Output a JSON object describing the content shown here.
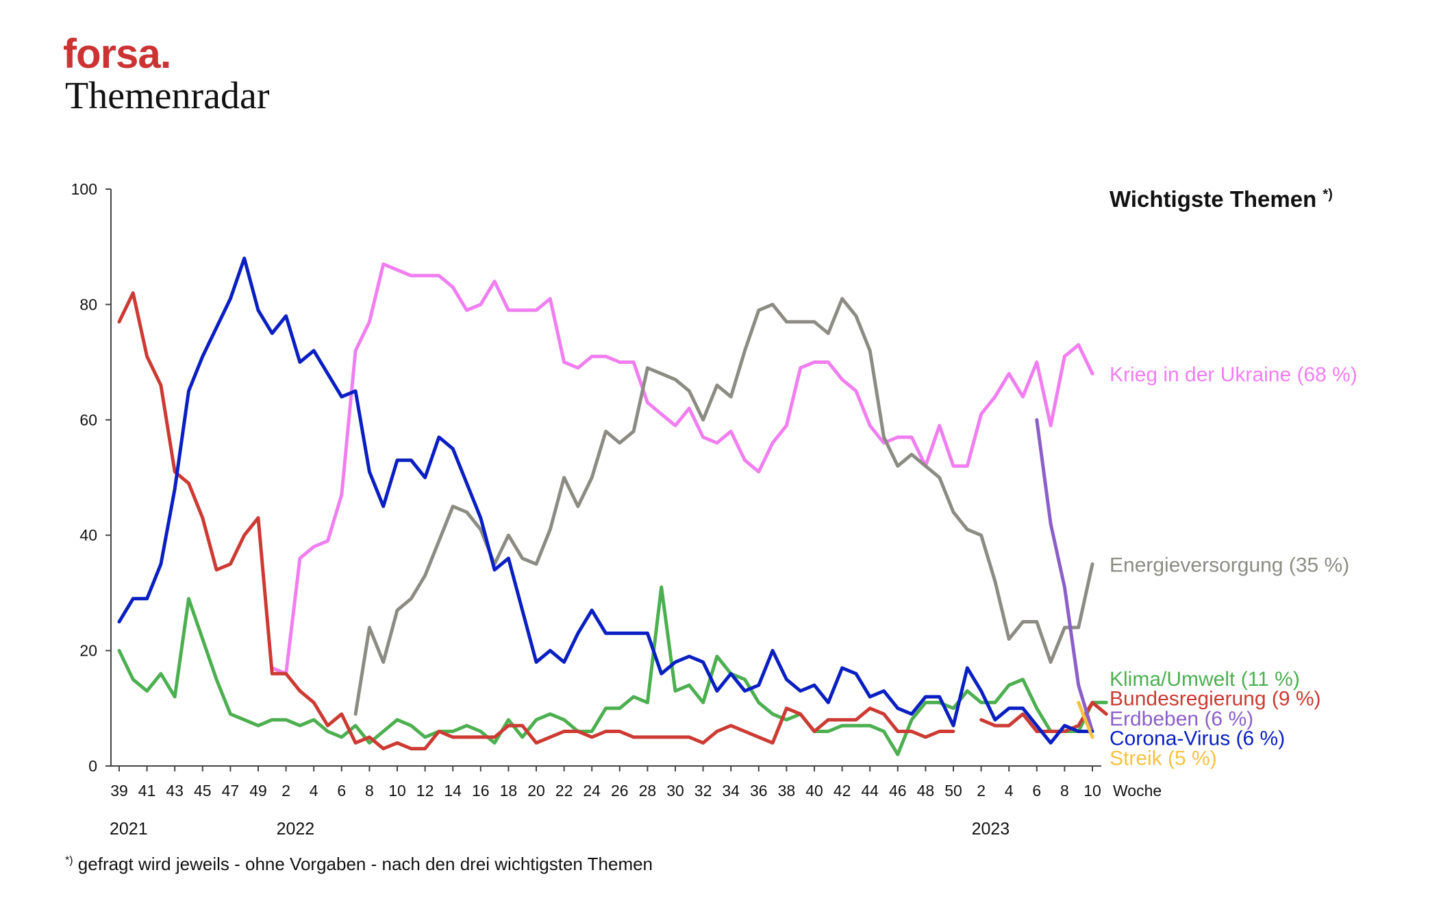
{
  "header": {
    "brand": "forsa.",
    "title": "Themenradar"
  },
  "footnote": {
    "mark": "*)",
    "text": "gefragt wird jeweils - ohne Vorgaben - nach den drei wichtigsten Themen"
  },
  "chart_data": {
    "type": "line",
    "title": "Wichtigste Themen",
    "title_mark": "*)",
    "xlabel": "Woche",
    "ylabel": "",
    "ylim": [
      0,
      100
    ],
    "yticks": [
      0,
      20,
      40,
      60,
      80,
      100
    ],
    "grid": false,
    "legend": "right (labels at line ends)",
    "week_ticks": [
      "39",
      "41",
      "43",
      "45",
      "47",
      "49",
      "2",
      "4",
      "6",
      "8",
      "10",
      "12",
      "14",
      "16",
      "18",
      "20",
      "22",
      "24",
      "26",
      "28",
      "30",
      "32",
      "34",
      "36",
      "38",
      "40",
      "42",
      "44",
      "46",
      "48",
      "50",
      "2",
      "4",
      "6",
      "8",
      "10"
    ],
    "years": [
      {
        "label": "2021",
        "x": 0
      },
      {
        "label": "2022",
        "x": 12
      },
      {
        "label": "2023",
        "x": 62
      }
    ],
    "x_note": "x = week index; 0 = Woche 39/2021, 12 = Woche 2/2022, 62 = Woche 2/2023, 70 = Woche 10/2023",
    "series": [
      {
        "name": "Krieg in der Ukraine",
        "label": "Krieg in der Ukraine (68 %)",
        "color": "#f07ef0",
        "start": 11,
        "values": [
          17,
          16,
          36,
          38,
          39,
          47,
          72,
          77,
          87,
          86,
          85,
          85,
          85,
          83,
          79,
          80,
          84,
          79,
          79,
          79,
          81,
          70,
          69,
          71,
          71,
          70,
          70,
          63,
          61,
          59,
          62,
          57,
          56,
          58,
          53,
          51,
          56,
          59,
          69,
          70,
          70,
          67,
          65,
          59,
          56,
          57,
          57,
          52,
          59,
          52,
          52,
          61,
          64,
          68,
          64,
          70,
          59,
          71,
          73,
          68
        ]
      },
      {
        "name": "Energieversorgung",
        "label": "Energieversorgung (35 %)",
        "color": "#8c8c84",
        "start": 17,
        "values": [
          9,
          24,
          18,
          27,
          29,
          33,
          39,
          45,
          44,
          41,
          35,
          40,
          36,
          35,
          41,
          50,
          45,
          50,
          58,
          56,
          58,
          69,
          68,
          67,
          65,
          60,
          66,
          64,
          72,
          79,
          80,
          77,
          77,
          77,
          75,
          81,
          78,
          72,
          57,
          52,
          54,
          52,
          50,
          44,
          41,
          40,
          32,
          22,
          25,
          25,
          18,
          24,
          24,
          35
        ]
      },
      {
        "name": "Klima/Umwelt",
        "label": "Klima/Umwelt (11 %)",
        "color": "#4caf50",
        "start": 0,
        "values": [
          20,
          15,
          13,
          16,
          12,
          29,
          22,
          15,
          9,
          8,
          7,
          8,
          8,
          7,
          8,
          6,
          5,
          7,
          4,
          6,
          8,
          7,
          5,
          6,
          6,
          7,
          6,
          4,
          8,
          5,
          8,
          9,
          8,
          6,
          6,
          10,
          10,
          12,
          11,
          31,
          13,
          14,
          11,
          19,
          16,
          15,
          11,
          9,
          8,
          9,
          6,
          6,
          7,
          7,
          7,
          6,
          2,
          8,
          11,
          11,
          10,
          13,
          11,
          11,
          14,
          15,
          10,
          6,
          6,
          6,
          11,
          11
        ]
      },
      {
        "name": "Bundesregierung",
        "label": "Bundesregierung (9 %)",
        "color": "#cc3a33",
        "start": 0,
        "values": [
          77,
          82,
          71,
          66,
          51,
          49,
          43,
          34,
          35,
          40,
          43,
          16,
          16,
          13,
          11,
          7,
          9,
          4,
          5,
          3,
          4,
          3,
          3,
          6,
          5,
          5,
          5,
          5,
          7,
          7,
          4,
          5,
          6,
          6,
          5,
          6,
          6,
          5,
          5,
          5,
          5,
          5,
          4,
          6,
          7,
          6,
          5,
          4,
          10,
          9,
          6,
          8,
          8,
          8,
          10,
          9,
          6,
          6,
          5,
          6,
          6,
          null,
          8,
          7,
          7,
          9,
          6,
          6,
          6,
          7,
          11,
          9
        ]
      },
      {
        "name": "Erdbeben",
        "label": "Erdbeben (6 %)",
        "color": "#8b5fc8",
        "start": 66,
        "values": [
          60,
          42,
          31,
          14,
          6
        ]
      },
      {
        "name": "Corona-Virus",
        "label": "Corona-Virus (6 %)",
        "color": "#0a1fc2",
        "start": 0,
        "values": [
          25,
          29,
          29,
          35,
          48,
          65,
          71,
          76,
          81,
          88,
          79,
          75,
          78,
          70,
          72,
          68,
          64,
          65,
          51,
          45,
          53,
          53,
          50,
          57,
          55,
          49,
          43,
          34,
          36,
          27,
          18,
          20,
          18,
          23,
          27,
          23,
          23,
          23,
          23,
          16,
          18,
          19,
          18,
          13,
          16,
          13,
          14,
          20,
          15,
          13,
          14,
          11,
          17,
          16,
          12,
          13,
          10,
          9,
          12,
          12,
          7,
          17,
          13,
          8,
          10,
          10,
          7,
          4,
          7,
          6,
          6
        ]
      },
      {
        "name": "Streik",
        "label": "Streik (5 %)",
        "color": "#f5c242",
        "start": 69,
        "values": [
          11,
          5
        ]
      }
    ]
  }
}
